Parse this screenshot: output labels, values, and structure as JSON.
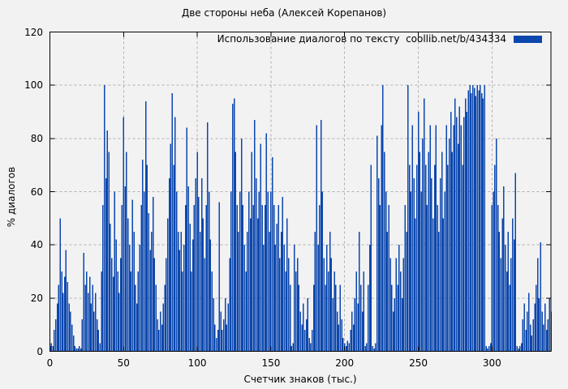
{
  "title": "Две стороны неба (Алексей Корепанов)",
  "legend": {
    "label": "Использование диалогов по тексту  coollib.net/b/434334",
    "swatch_color": "#0c47ad"
  },
  "axes": {
    "y_label": "% диалогов",
    "x_label": "Счетчик знаков (тыс.)",
    "y_ticks": [
      0,
      20,
      40,
      60,
      80,
      100,
      120
    ],
    "x_ticks": [
      0,
      50,
      100,
      150,
      200,
      250,
      300
    ]
  },
  "colors": {
    "background": "#f2f2f2",
    "bar": "#0c47ad",
    "grid": "#b0b0b0",
    "frame": "#000000"
  },
  "chart_data": {
    "type": "bar",
    "title": "Две стороны неба (Алексей Корепанов)",
    "xlabel": "Счетчик знаков (тыс.)",
    "ylabel": "% диалогов",
    "xlim": [
      0,
      340
    ],
    "ylim": [
      0,
      120
    ],
    "grid": true,
    "legend_position": "top-right-inside",
    "series_name": "Использование диалогов по тексту  coollib.net/b/434334",
    "bar_color": "#0c47ad",
    "x_start": 0,
    "x_step": 1,
    "values": [
      2,
      3,
      2,
      8,
      12,
      18,
      25,
      50,
      30,
      22,
      28,
      38,
      26,
      18,
      15,
      10,
      6,
      2,
      1,
      1,
      2,
      1,
      12,
      37,
      25,
      30,
      22,
      28,
      18,
      25,
      15,
      22,
      12,
      8,
      3,
      30,
      55,
      100,
      65,
      83,
      75,
      48,
      35,
      28,
      60,
      42,
      30,
      22,
      35,
      55,
      88,
      62,
      75,
      50,
      40,
      30,
      57,
      45,
      25,
      18,
      30,
      40,
      55,
      72,
      60,
      94,
      70,
      52,
      38,
      45,
      58,
      35,
      25,
      12,
      8,
      15,
      10,
      18,
      25,
      35,
      50,
      65,
      78,
      97,
      70,
      88,
      60,
      45,
      38,
      45,
      30,
      40,
      55,
      84,
      62,
      48,
      30,
      42,
      55,
      65,
      75,
      58,
      45,
      65,
      50,
      35,
      55,
      86,
      60,
      42,
      30,
      20,
      10,
      5,
      8,
      56,
      15,
      8,
      12,
      20,
      10,
      18,
      35,
      60,
      93,
      95,
      75,
      55,
      45,
      60,
      80,
      55,
      40,
      30,
      45,
      60,
      50,
      75,
      55,
      87,
      65,
      50,
      60,
      78,
      55,
      40,
      55,
      82,
      60,
      45,
      60,
      73,
      55,
      40,
      48,
      55,
      35,
      45,
      58,
      40,
      30,
      50,
      35,
      25,
      2,
      3,
      40,
      30,
      35,
      25,
      15,
      10,
      18,
      8,
      12,
      20,
      5,
      3,
      8,
      25,
      45,
      85,
      40,
      55,
      87,
      60,
      35,
      25,
      40,
      30,
      45,
      35,
      20,
      30,
      25,
      15,
      10,
      25,
      12,
      5,
      3,
      2,
      4,
      3,
      8,
      15,
      10,
      20,
      30,
      18,
      45,
      25,
      15,
      30,
      2,
      3,
      25,
      40,
      70,
      2,
      1,
      3,
      81,
      65,
      55,
      85,
      100,
      75,
      60,
      45,
      55,
      35,
      25,
      15,
      20,
      35,
      25,
      40,
      30,
      20,
      35,
      55,
      45,
      100,
      70,
      60,
      85,
      65,
      50,
      70,
      90,
      75,
      60,
      80,
      95,
      70,
      55,
      75,
      85,
      65,
      50,
      70,
      85,
      55,
      45,
      65,
      75,
      50,
      60,
      85,
      70,
      80,
      90,
      75,
      85,
      95,
      88,
      78,
      92,
      85,
      70,
      88,
      95,
      90,
      98,
      100,
      97,
      100,
      99,
      96,
      100,
      98,
      100,
      97,
      95,
      100,
      2,
      1,
      2,
      3,
      55,
      60,
      70,
      80,
      55,
      45,
      35,
      50,
      62,
      40,
      30,
      45,
      25,
      35,
      50,
      42,
      67,
      2,
      1,
      2,
      3,
      12,
      18,
      8,
      15,
      22,
      10,
      6,
      12,
      18,
      25,
      35,
      20,
      41,
      15,
      10,
      18,
      8,
      12,
      20,
      15
    ]
  }
}
